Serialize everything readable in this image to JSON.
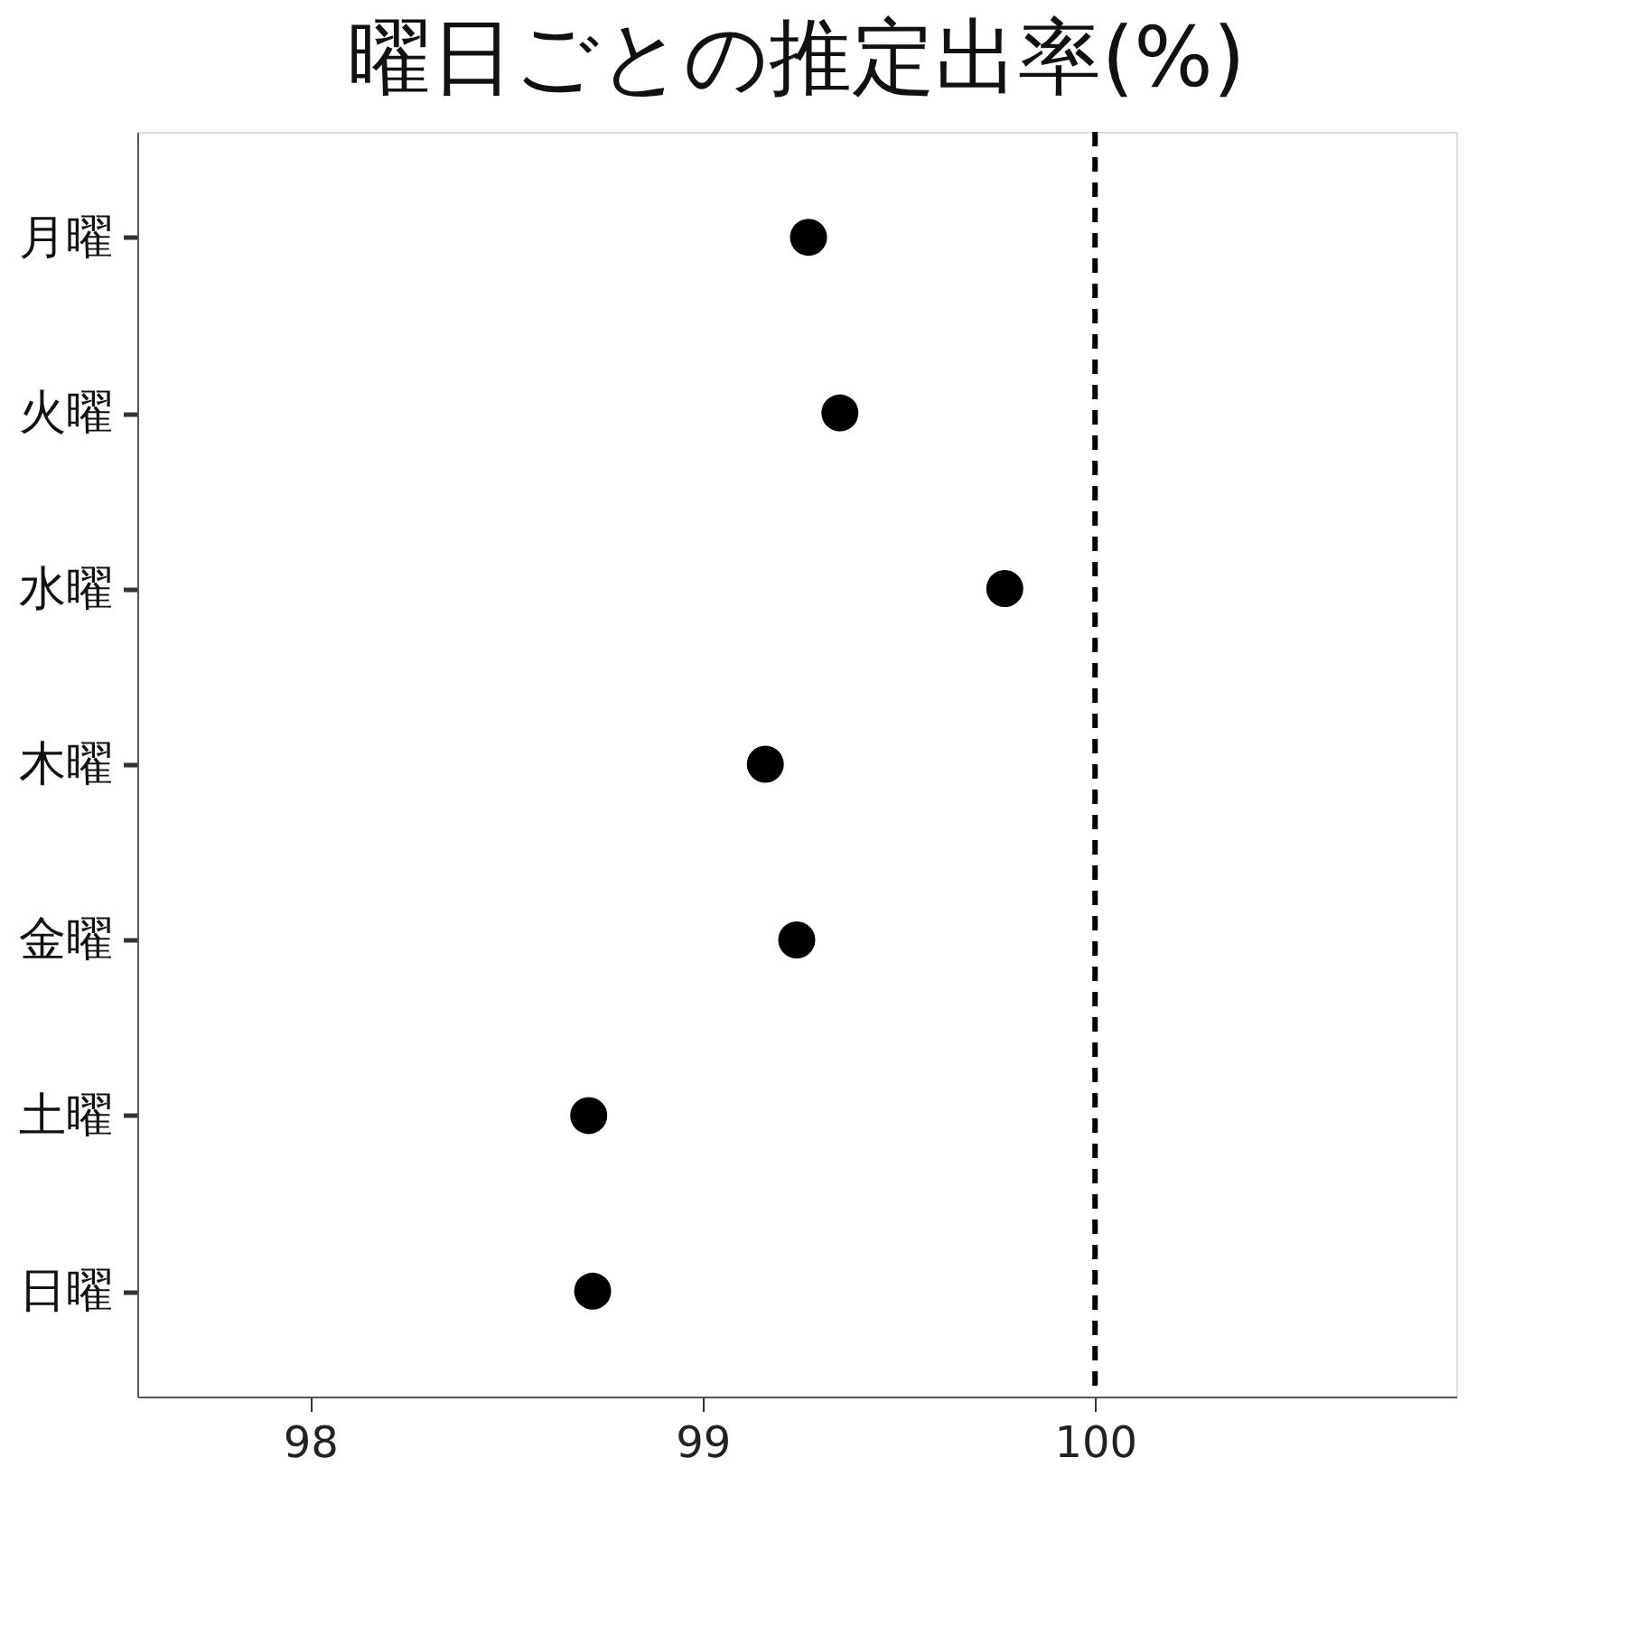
{
  "chart_data": {
    "type": "scatter",
    "orientation": "horizontal",
    "title": "曜日ごとの推定出率(%)",
    "categories": [
      "月曜",
      "火曜",
      "水曜",
      "木曜",
      "金曜",
      "土曜",
      "日曜"
    ],
    "series": [
      {
        "color": "#000000",
        "values": [
          99.27,
          99.35,
          99.77,
          99.16,
          99.24,
          98.71,
          98.72
        ]
      }
    ],
    "xlim": [
      97.56,
      100.92
    ],
    "xticks": [
      98,
      99,
      100
    ],
    "ref_lines": [
      {
        "axis": "x",
        "value": 100,
        "color": "#000000",
        "line_style": "dashed"
      }
    ],
    "marker": "circle",
    "grid": false
  }
}
